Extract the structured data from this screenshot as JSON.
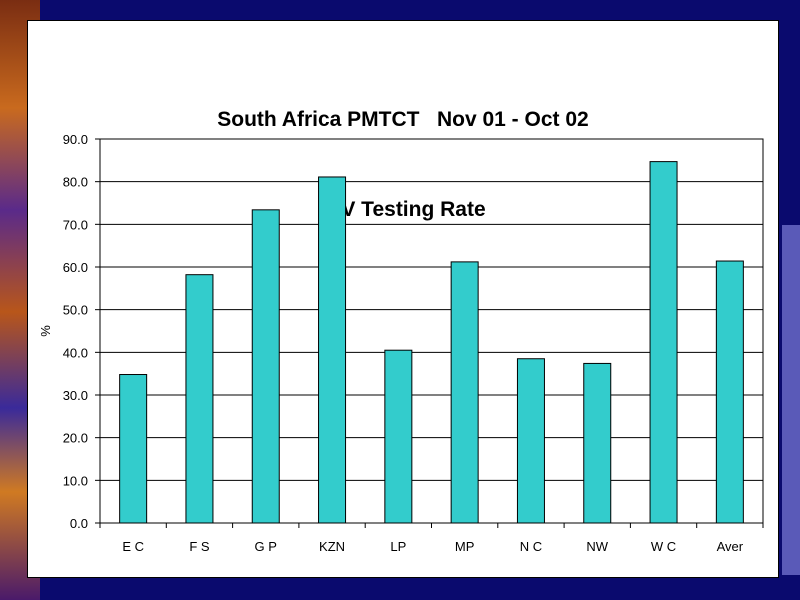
{
  "chart_data": {
    "type": "bar",
    "title": "South Africa PMTCT   Nov 01 - Oct 02",
    "subtitle": "HIV Testing Rate",
    "xlabel": "",
    "ylabel": "%",
    "categories": [
      "E C",
      "F S",
      "G P",
      "KZN",
      "LP",
      "MP",
      "N C",
      "NW",
      "W C",
      "Aver"
    ],
    "values": [
      34.8,
      58.2,
      73.4,
      81.1,
      40.5,
      61.2,
      38.5,
      37.4,
      84.7,
      61.4
    ],
    "ylim": [
      0,
      90
    ],
    "yticks": [
      "0.0",
      "10.0",
      "20.0",
      "30.0",
      "40.0",
      "50.0",
      "60.0",
      "70.0",
      "80.0",
      "90.0"
    ],
    "grid": true,
    "legend": "none",
    "bar_color": "#33cccc"
  }
}
